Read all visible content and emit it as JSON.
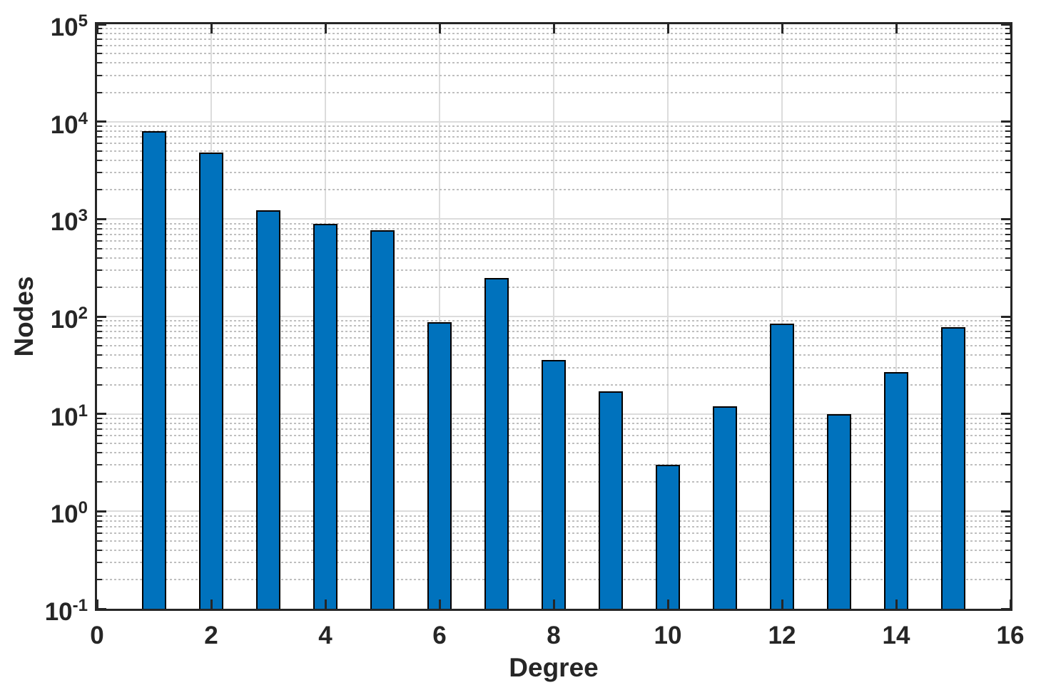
{
  "chart_data": {
    "type": "bar",
    "title": "",
    "xlabel": "Degree",
    "ylabel": "Nodes",
    "x": [
      1,
      2,
      3,
      4,
      5,
      6,
      7,
      8,
      9,
      10,
      11,
      12,
      13,
      14,
      15
    ],
    "values": [
      8000,
      4800,
      1230,
      900,
      770,
      87,
      250,
      36,
      17,
      3,
      12,
      85,
      10,
      27,
      78
    ],
    "xlim": [
      0,
      16
    ],
    "yscale": "log",
    "ylim_exponents": [
      -1,
      5
    ],
    "xticks": [
      0,
      2,
      4,
      6,
      8,
      10,
      12,
      14,
      16
    ],
    "xticklabels": [
      "0",
      "2",
      "4",
      "6",
      "8",
      "10",
      "12",
      "14",
      "16"
    ],
    "ytick_base": "10",
    "ytick_exponents": [
      -1,
      0,
      1,
      2,
      3,
      4,
      5
    ],
    "grid": "major solid + log minor dotted",
    "legend": "none",
    "bar_relative_width": 0.42,
    "colors": {
      "bar_fill": "#0072BD",
      "bar_edge": "#000000",
      "axis": "#262626",
      "text": "#262626",
      "major_grid": "#DCDCDC",
      "minor_grid": "#BFBFBF",
      "background": "#FFFFFF"
    }
  }
}
